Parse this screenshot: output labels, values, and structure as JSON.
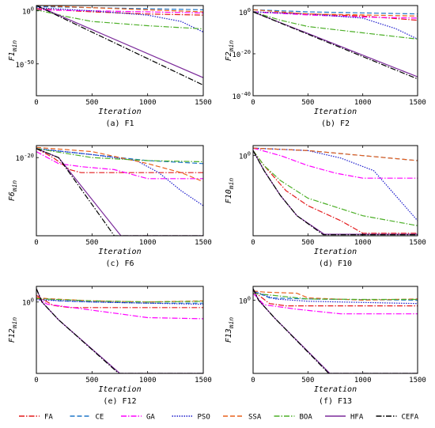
{
  "series_styles": [
    {
      "name": "FA",
      "color": "#e41a1c",
      "dash": "7,2,1.5,2"
    },
    {
      "name": "CE",
      "color": "#1f77c8",
      "dash": "6,3"
    },
    {
      "name": "GA",
      "color": "#ff00ff",
      "dash": "7,2,1.5,2"
    },
    {
      "name": "PSO",
      "color": "#1a1acc",
      "dash": "1.5,1.5"
    },
    {
      "name": "SSA",
      "color": "#e8601c",
      "dash": "6,3"
    },
    {
      "name": "BOA",
      "color": "#4caf27",
      "dash": "7,2,1.5,2"
    },
    {
      "name": "HFA",
      "color": "#7b2a9a",
      "dash": ""
    },
    {
      "name": "CEFA",
      "color": "#000000",
      "dash": "7,2,1.5,2"
    }
  ],
  "chart_data": [
    {
      "type": "line",
      "caption": "(a)  F1",
      "xlabel": "Iteration",
      "ylabel_main": "F1",
      "ylabel_sub": "min",
      "xlim": [
        0,
        1500
      ],
      "x_ticks": [
        "0",
        "500",
        "1000",
        "1500"
      ],
      "y_scale": "log",
      "ylim_exp": [
        -80,
        5
      ],
      "y_ticks": [
        {
          "exp": 0,
          "label": "10",
          "sup": "0"
        },
        {
          "exp": -50,
          "label": "10",
          "sup": "-50"
        }
      ],
      "series": [
        {
          "name": "FA",
          "x": [
            0,
            500,
            1000,
            1500
          ],
          "y_exp": [
            2,
            -1,
            -3,
            -4
          ]
        },
        {
          "name": "CE",
          "x": [
            0,
            500,
            1000,
            1500
          ],
          "y_exp": [
            4,
            3,
            2,
            1
          ]
        },
        {
          "name": "GA",
          "x": [
            0,
            500,
            1000,
            1500
          ],
          "y_exp": [
            1,
            0,
            -1,
            -2
          ]
        },
        {
          "name": "PSO",
          "x": [
            0,
            500,
            1000,
            1300,
            1500
          ],
          "y_exp": [
            3,
            0,
            -4,
            -10,
            -20
          ]
        },
        {
          "name": "SSA",
          "x": [
            0,
            500,
            1000,
            1500
          ],
          "y_exp": [
            5,
            3,
            1,
            -1
          ]
        },
        {
          "name": "BOA",
          "x": [
            0,
            250,
            500,
            1000,
            1500
          ],
          "y_exp": [
            1,
            -5,
            -10,
            -14,
            -17
          ]
        },
        {
          "name": "HFA",
          "x": [
            0,
            1500
          ],
          "y_exp": [
            5,
            -63
          ]
        },
        {
          "name": "CEFA",
          "x": [
            0,
            1500
          ],
          "y_exp": [
            5,
            -70
          ]
        }
      ]
    },
    {
      "type": "line",
      "caption": "(b)  F2",
      "xlabel": "Iteration",
      "ylabel_main": "F2",
      "ylabel_sub": "min",
      "xlim": [
        0,
        1500
      ],
      "x_ticks": [
        "0",
        "500",
        "1000",
        "1500"
      ],
      "y_scale": "log",
      "ylim_exp": [
        -40,
        3
      ],
      "y_ticks": [
        {
          "exp": 0,
          "label": "10",
          "sup": "0"
        },
        {
          "exp": -20,
          "label": "10",
          "sup": "-20"
        },
        {
          "exp": -40,
          "label": "10",
          "sup": "-40"
        }
      ],
      "series": [
        {
          "name": "FA",
          "x": [
            0,
            500,
            1000,
            1500
          ],
          "y_exp": [
            0,
            -1,
            -2,
            -4
          ]
        },
        {
          "name": "CE",
          "x": [
            0,
            500,
            1000,
            1500
          ],
          "y_exp": [
            1,
            0,
            -0.5,
            -1
          ]
        },
        {
          "name": "GA",
          "x": [
            0,
            500,
            1000,
            1500
          ],
          "y_exp": [
            0,
            -1.5,
            -2.5,
            -3
          ]
        },
        {
          "name": "PSO",
          "x": [
            0,
            500,
            1000,
            1300,
            1500
          ],
          "y_exp": [
            0,
            -1,
            -3,
            -8,
            -13
          ]
        },
        {
          "name": "SSA",
          "x": [
            0,
            500,
            1000,
            1500
          ],
          "y_exp": [
            1,
            -1,
            -1.5,
            -2
          ]
        },
        {
          "name": "BOA",
          "x": [
            0,
            250,
            500,
            1000,
            1500
          ],
          "y_exp": [
            0,
            -4,
            -7,
            -10,
            -13
          ]
        },
        {
          "name": "HFA",
          "x": [
            0,
            1500
          ],
          "y_exp": [
            0,
            -31
          ]
        },
        {
          "name": "CEFA",
          "x": [
            0,
            1500
          ],
          "y_exp": [
            0,
            -32
          ]
        }
      ]
    },
    {
      "type": "line",
      "caption": "(c)  F6",
      "xlabel": "Iteration",
      "ylabel_main": "F6",
      "ylabel_sub": "min",
      "xlim": [
        0,
        1500
      ],
      "x_ticks": [
        "0",
        "500",
        "1000",
        "1500"
      ],
      "y_scale": "log",
      "ylim_exp": [
        -33,
        -18
      ],
      "y_ticks": [
        {
          "exp": -20,
          "label": "10",
          "sup": "-20"
        }
      ],
      "series": [
        {
          "name": "FA",
          "x": [
            0,
            150,
            300,
            400,
            1500
          ],
          "y_exp": [
            -18.5,
            -20,
            -22,
            -22.5,
            -22.5
          ]
        },
        {
          "name": "CE",
          "x": [
            0,
            500,
            1000,
            1500
          ],
          "y_exp": [
            -18.5,
            -19.5,
            -20.5,
            -21
          ]
        },
        {
          "name": "GA",
          "x": [
            0,
            200,
            400,
            700,
            1000,
            1500
          ],
          "y_exp": [
            -19,
            -21,
            -21.5,
            -22,
            -23.5,
            -23.5
          ]
        },
        {
          "name": "PSO",
          "x": [
            0,
            500,
            900,
            1100,
            1300,
            1500
          ],
          "y_exp": [
            -18.5,
            -19.5,
            -20.5,
            -22.5,
            -25.5,
            -28
          ]
        },
        {
          "name": "SSA",
          "x": [
            0,
            500,
            1000,
            1300,
            1500
          ],
          "y_exp": [
            -18.3,
            -19,
            -21,
            -22.5,
            -24
          ]
        },
        {
          "name": "BOA",
          "x": [
            0,
            500,
            1000,
            1500
          ],
          "y_exp": [
            -18.5,
            -20,
            -20.5,
            -20.7
          ]
        },
        {
          "name": "HFA",
          "x": [
            0,
            200,
            760,
            1500
          ],
          "y_exp": [
            -18.5,
            -20,
            -33,
            -33
          ]
        },
        {
          "name": "CEFA",
          "x": [
            0,
            200,
            700,
            1500
          ],
          "y_exp": [
            -18.5,
            -20,
            -33,
            -33
          ]
        }
      ]
    },
    {
      "type": "line",
      "caption": "(d)  F10",
      "xlabel": "Iteration",
      "ylabel_main": "F10",
      "ylabel_sub": "min",
      "xlim": [
        0,
        1500
      ],
      "x_ticks": [
        "0",
        "500",
        "1000",
        "1500"
      ],
      "y_scale": "log",
      "ylim_exp": [
        -16,
        2
      ],
      "y_ticks": [
        {
          "exp": 0,
          "label": "10",
          "sup": "0"
        }
      ],
      "series": [
        {
          "name": "FA",
          "x": [
            0,
            100,
            300,
            500,
            800,
            1000,
            1500
          ],
          "y_exp": [
            1,
            -2,
            -7,
            -10,
            -13,
            -15.5,
            -15.5
          ]
        },
        {
          "name": "CE",
          "x": [
            0,
            500,
            1000,
            1500
          ],
          "y_exp": [
            1.5,
            1,
            0,
            -1
          ]
        },
        {
          "name": "GA",
          "x": [
            0,
            250,
            500,
            750,
            1000,
            1500
          ],
          "y_exp": [
            1.5,
            0,
            -2,
            -3.5,
            -4.5,
            -4.5
          ]
        },
        {
          "name": "PSO",
          "x": [
            0,
            500,
            800,
            1100,
            1300,
            1500
          ],
          "y_exp": [
            1.5,
            1,
            -0.5,
            -3,
            -8,
            -13
          ]
        },
        {
          "name": "SSA",
          "x": [
            0,
            500,
            1000,
            1500
          ],
          "y_exp": [
            1.5,
            1,
            0,
            -1
          ]
        },
        {
          "name": "BOA",
          "x": [
            0,
            100,
            250,
            500,
            1000,
            1500
          ],
          "y_exp": [
            1,
            -2,
            -5,
            -8.5,
            -12,
            -14
          ]
        },
        {
          "name": "HFA",
          "x": [
            0,
            100,
            250,
            400,
            650,
            1500
          ],
          "y_exp": [
            1,
            -3,
            -8,
            -12,
            -15.7,
            -15.7
          ]
        },
        {
          "name": "CEFA",
          "x": [
            0,
            100,
            250,
            400,
            640,
            1500
          ],
          "y_exp": [
            1,
            -3,
            -8,
            -12,
            -15.8,
            -15.8
          ]
        }
      ]
    },
    {
      "type": "line",
      "caption": "(e)  F12",
      "xlabel": "Iteration",
      "ylabel_main": "F12",
      "ylabel_sub": "min",
      "xlim": [
        0,
        1500
      ],
      "x_ticks": [
        "0",
        "500",
        "1000",
        "1500"
      ],
      "y_scale": "log",
      "ylim_exp": [
        -32,
        7
      ],
      "y_ticks": [
        {
          "exp": 0,
          "label": "10",
          "sup": "0"
        }
      ],
      "series": [
        {
          "name": "FA",
          "x": [
            0,
            150,
            300,
            1500
          ],
          "y_exp": [
            3,
            -1.5,
            -2.5,
            -2.5
          ]
        },
        {
          "name": "CE",
          "x": [
            0,
            200,
            500,
            1000,
            1500
          ],
          "y_exp": [
            2,
            0.5,
            0,
            -0.5,
            -0.5
          ]
        },
        {
          "name": "GA",
          "x": [
            0,
            100,
            400,
            700,
            1000,
            1500
          ],
          "y_exp": [
            2,
            -1,
            -3,
            -5,
            -7,
            -7.5
          ]
        },
        {
          "name": "PSO",
          "x": [
            0,
            500,
            1000,
            1500
          ],
          "y_exp": [
            1,
            0,
            -0.5,
            -1
          ]
        },
        {
          "name": "SSA",
          "x": [
            0,
            100,
            500,
            1000,
            1500
          ],
          "y_exp": [
            2,
            1.5,
            0.5,
            0,
            0.5
          ]
        },
        {
          "name": "BOA",
          "x": [
            0,
            500,
            1000,
            1500
          ],
          "y_exp": [
            1.5,
            0.5,
            0,
            0.3
          ]
        },
        {
          "name": "HFA",
          "x": [
            0,
            50,
            200,
            750,
            1500
          ],
          "y_exp": [
            6,
            0,
            -8,
            -32,
            -32
          ]
        },
        {
          "name": "CEFA",
          "x": [
            0,
            50,
            200,
            740,
            1500
          ],
          "y_exp": [
            6,
            0,
            -8,
            -32,
            -32
          ]
        }
      ]
    },
    {
      "type": "line",
      "caption": "(f)  F13",
      "xlabel": "Iteration",
      "ylabel_main": "F13",
      "ylabel_sub": "min",
      "xlim": [
        0,
        1500
      ],
      "x_ticks": [
        "0",
        "500",
        "1000",
        "1500"
      ],
      "y_scale": "log",
      "ylim_exp": [
        -32,
        6
      ],
      "y_ticks": [
        {
          "exp": 0,
          "label": "10",
          "sup": "0"
        }
      ],
      "series": [
        {
          "name": "FA",
          "x": [
            0,
            150,
            300,
            1500
          ],
          "y_exp": [
            4,
            -1.5,
            -2.5,
            -2.5
          ]
        },
        {
          "name": "CE",
          "x": [
            0,
            150,
            500,
            1000,
            1500
          ],
          "y_exp": [
            4,
            1,
            0.5,
            0.2,
            0
          ]
        },
        {
          "name": "GA",
          "x": [
            0,
            100,
            400,
            800,
            1500
          ],
          "y_exp": [
            3,
            -2,
            -4,
            -6,
            -6
          ]
        },
        {
          "name": "PSO",
          "x": [
            0,
            200,
            500,
            1000,
            1500
          ],
          "y_exp": [
            4,
            0.5,
            -0.5,
            -1,
            -1.5
          ]
        },
        {
          "name": "SSA",
          "x": [
            0,
            100,
            400,
            500,
            1000,
            1500
          ],
          "y_exp": [
            4,
            3.5,
            3,
            1,
            0,
            0.5
          ]
        },
        {
          "name": "BOA",
          "x": [
            0,
            500,
            1000,
            1500
          ],
          "y_exp": [
            3,
            0.5,
            0.3,
            0.3
          ]
        },
        {
          "name": "HFA",
          "x": [
            0,
            50,
            200,
            700,
            1500
          ],
          "y_exp": [
            5,
            0,
            -8,
            -32,
            -32
          ]
        },
        {
          "name": "CEFA",
          "x": [
            0,
            50,
            200,
            690,
            1500
          ],
          "y_exp": [
            5,
            0,
            -8,
            -32,
            -32
          ]
        }
      ]
    }
  ]
}
